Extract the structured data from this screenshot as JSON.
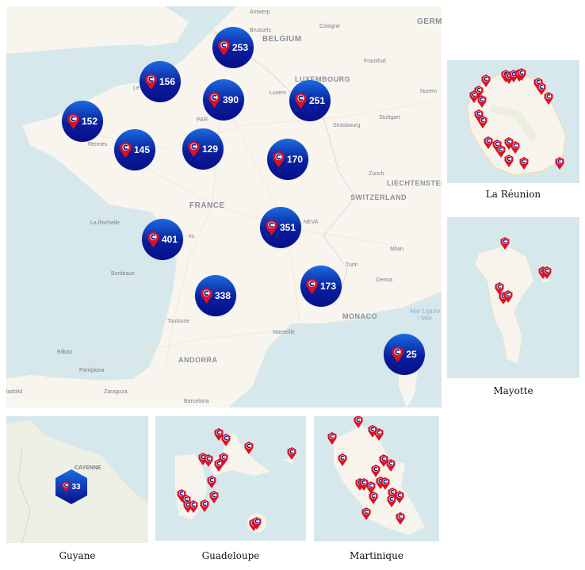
{
  "main_map": {
    "country_labels": [
      "BELGIUM",
      "LUXEMBOURG",
      "FRANCE",
      "SWITZERLAND",
      "LIECHTENSTEIN",
      "MONACO",
      "ANDORRA",
      "GERM"
    ],
    "city_labels": [
      "Antwerp",
      "Brussels",
      "Cologne",
      "Frankfurt",
      "Luxem",
      "Stuttgart",
      "Strasbourg",
      "Nurem",
      "Rennes",
      "PAR",
      "Le",
      "Zurich",
      "La Rochelle",
      "es",
      "NEVA",
      "Milan",
      "Turin",
      "Genoa",
      "Bordeaux",
      "Toulouse",
      "Marseille",
      "Bilbao",
      "Pamplona",
      "Zaragoza",
      "Barcelona",
      "ladolid"
    ],
    "sea_label": "Mar Ligure / Mer",
    "clusters": [
      {
        "count": "253"
      },
      {
        "count": "156"
      },
      {
        "count": "390"
      },
      {
        "count": "251"
      },
      {
        "count": "152"
      },
      {
        "count": "145"
      },
      {
        "count": "129"
      },
      {
        "count": "170"
      },
      {
        "count": "351"
      },
      {
        "count": "401"
      },
      {
        "count": "338"
      },
      {
        "count": "173"
      },
      {
        "count": "25"
      }
    ]
  },
  "insets": {
    "reunion": {
      "caption": "La Réunion"
    },
    "mayotte": {
      "caption": "Mayotte"
    },
    "guyane": {
      "caption": "Guyane",
      "city": "CAYENNE",
      "cluster_count": "33"
    },
    "guadeloupe": {
      "caption": "Guadeloupe"
    },
    "martinique": {
      "caption": "Martinique"
    }
  },
  "colors": {
    "cluster": "#0a1e9c",
    "pin": "#e0101e",
    "land": "#f8f5ef",
    "sea": "#d6e8ec"
  },
  "icons": {
    "marker": "map-pin-c-icon"
  }
}
